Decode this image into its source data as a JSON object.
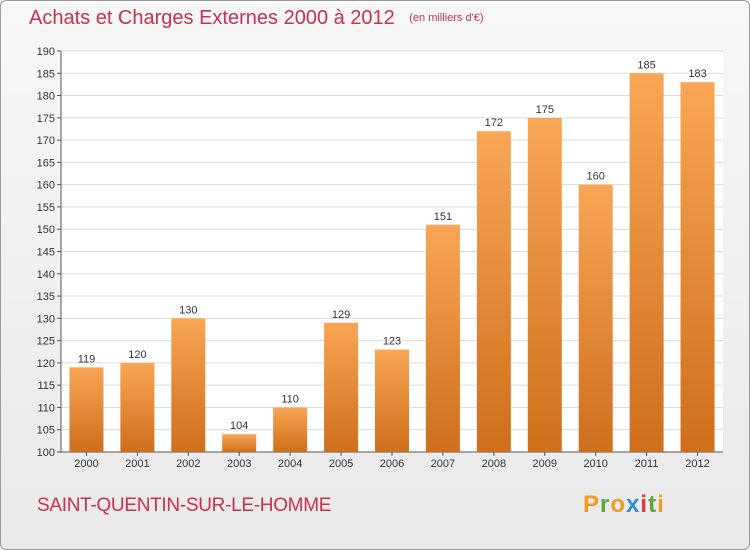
{
  "title": "Achats et Charges Externes 2000 à 2012",
  "unit": "(en milliers d'€)",
  "place": "SAINT-QUENTIN-SUR-LE-HOMME",
  "logo": {
    "letters": [
      "P",
      "r",
      "o",
      "x",
      "i",
      "t",
      "i"
    ],
    "colors": [
      "#f39a23",
      "#58a83a",
      "#f39a23",
      "#2f8fd0",
      "#d93a3a",
      "#58a83a",
      "#f39a23"
    ]
  },
  "colors": {
    "title": "#c7304f",
    "bar_top": "#f8a655",
    "bar_bottom": "#cf6e1b",
    "grid": "#dcdcdc"
  },
  "chart_data": {
    "type": "bar",
    "categories": [
      "2000",
      "2001",
      "2002",
      "2003",
      "2004",
      "2005",
      "2006",
      "2007",
      "2008",
      "2009",
      "2010",
      "2011",
      "2012"
    ],
    "values": [
      119,
      120,
      130,
      104,
      110,
      129,
      123,
      151,
      172,
      175,
      160,
      185,
      183
    ],
    "ylim": [
      100,
      190
    ],
    "yticks": [
      100,
      105,
      110,
      115,
      120,
      125,
      130,
      135,
      140,
      145,
      150,
      155,
      160,
      165,
      170,
      175,
      180,
      185,
      190
    ],
    "grid": true
  }
}
